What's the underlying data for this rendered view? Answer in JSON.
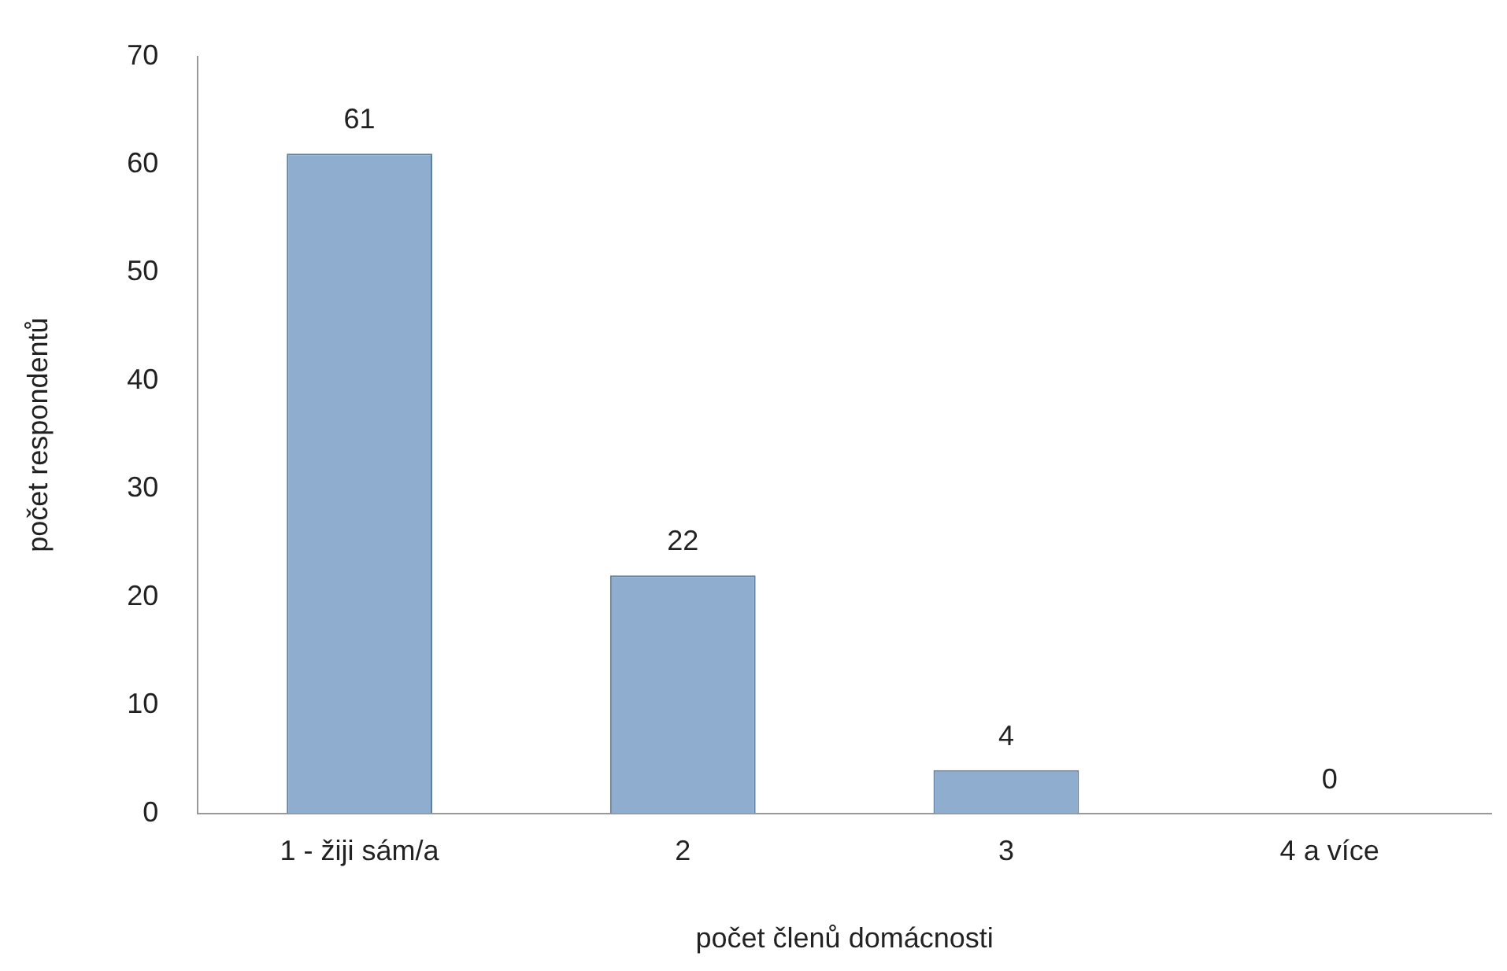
{
  "chart_data": {
    "type": "bar",
    "xlabel": "počet členů domácnosti",
    "ylabel": "počet respondentů",
    "categories": [
      "1 - žiji sám/a",
      "2",
      "3",
      "4 a více"
    ],
    "values": [
      61,
      22,
      4,
      0
    ],
    "color": "#8eadcf",
    "ylim": [
      0,
      70
    ],
    "yticks": [
      0,
      10,
      20,
      30,
      40,
      50,
      60,
      70
    ],
    "grid": false,
    "data_labels": true
  }
}
